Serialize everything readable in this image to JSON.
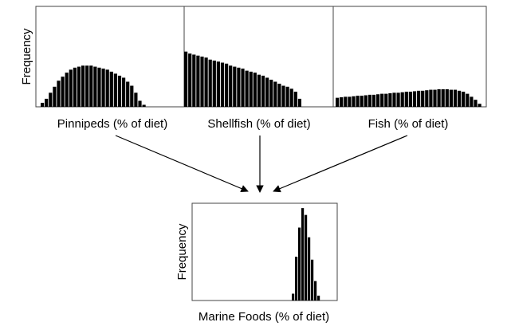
{
  "chart_data": [
    {
      "type": "bar",
      "xlabel": "Pinnipeds (% of diet)",
      "ylabel": "Frequency",
      "values": [
        0.04,
        0.08,
        0.14,
        0.2,
        0.26,
        0.3,
        0.34,
        0.37,
        0.39,
        0.4,
        0.41,
        0.41,
        0.41,
        0.4,
        0.39,
        0.38,
        0.37,
        0.35,
        0.33,
        0.31,
        0.29,
        0.25,
        0.21,
        0.14,
        0.06,
        0.02
      ]
    },
    {
      "type": "bar",
      "xlabel": "Shellfish (% of diet)",
      "values": [
        0.55,
        0.53,
        0.52,
        0.51,
        0.5,
        0.49,
        0.47,
        0.46,
        0.45,
        0.44,
        0.43,
        0.41,
        0.4,
        0.39,
        0.38,
        0.36,
        0.35,
        0.34,
        0.32,
        0.31,
        0.29,
        0.27,
        0.25,
        0.23,
        0.21,
        0.2,
        0.18,
        0.15,
        0.08
      ]
    },
    {
      "type": "bar",
      "xlabel": "Fish (% of diet)",
      "values": [
        0.09,
        0.095,
        0.1,
        0.1,
        0.105,
        0.11,
        0.11,
        0.115,
        0.12,
        0.12,
        0.125,
        0.13,
        0.13,
        0.135,
        0.14,
        0.14,
        0.145,
        0.15,
        0.15,
        0.155,
        0.16,
        0.16,
        0.165,
        0.17,
        0.17,
        0.175,
        0.175,
        0.175,
        0.17,
        0.17,
        0.16,
        0.15,
        0.13,
        0.1,
        0.07,
        0.03
      ]
    },
    {
      "type": "bar",
      "xlabel": "Marine Foods (% of diet)",
      "ylabel": "Frequency",
      "values": [
        0.07,
        0.45,
        0.75,
        0.95,
        0.88,
        0.65,
        0.42,
        0.2,
        0.05
      ]
    }
  ]
}
